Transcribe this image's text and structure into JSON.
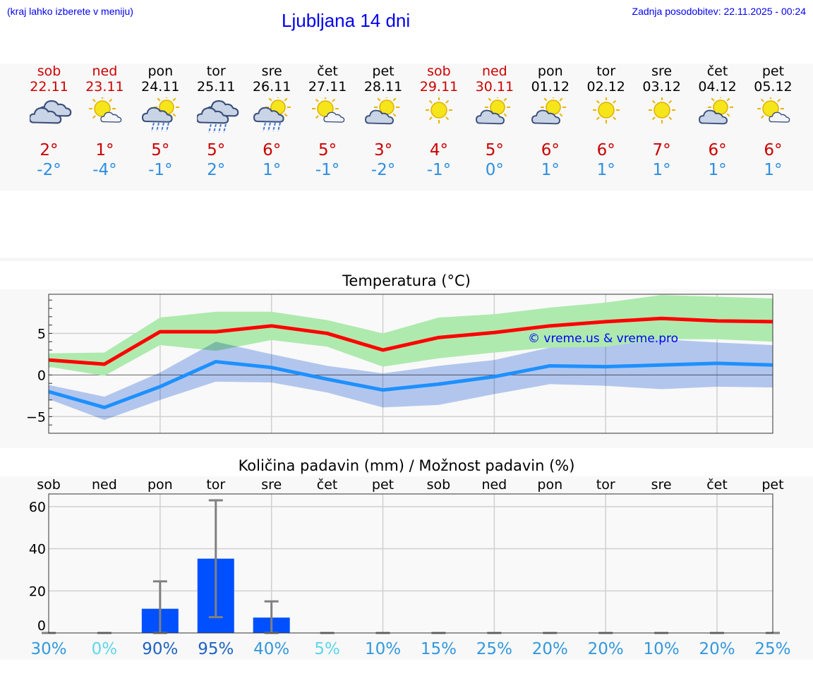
{
  "header": {
    "hint": "(kraj lahko izberete v meniju)",
    "title": "Ljubljana 14 dni",
    "updated": "Zadnja posodobitev: 22.11.2025 - 00:24"
  },
  "days": [
    {
      "name": "sob",
      "date": "22.11",
      "weekend": true,
      "icon": "cloudy",
      "max": "2°",
      "min": "-2°",
      "precip_pct": "30%"
    },
    {
      "name": "ned",
      "date": "23.11",
      "weekend": true,
      "icon": "sun-small-cloud",
      "max": "1°",
      "min": "-4°",
      "precip_pct": "0%"
    },
    {
      "name": "pon",
      "date": "24.11",
      "weekend": false,
      "icon": "sun-cloud-rain",
      "max": "5°",
      "min": "-1°",
      "precip_pct": "90%"
    },
    {
      "name": "tor",
      "date": "25.11",
      "weekend": false,
      "icon": "cloud-rain",
      "max": "5°",
      "min": "2°",
      "precip_pct": "95%"
    },
    {
      "name": "sre",
      "date": "26.11",
      "weekend": false,
      "icon": "sun-cloud-rain",
      "max": "6°",
      "min": "1°",
      "precip_pct": "40%"
    },
    {
      "name": "čet",
      "date": "27.11",
      "weekend": false,
      "icon": "sun-small-cloud",
      "max": "5°",
      "min": "-1°",
      "precip_pct": "5%"
    },
    {
      "name": "pet",
      "date": "28.11",
      "weekend": false,
      "icon": "cloud-sun",
      "max": "3°",
      "min": "-2°",
      "precip_pct": "10%"
    },
    {
      "name": "sob",
      "date": "29.11",
      "weekend": true,
      "icon": "sun",
      "max": "4°",
      "min": "-1°",
      "precip_pct": "15%"
    },
    {
      "name": "ned",
      "date": "30.11",
      "weekend": true,
      "icon": "cloud-sun",
      "max": "5°",
      "min": "0°",
      "precip_pct": "25%"
    },
    {
      "name": "pon",
      "date": "01.12",
      "weekend": false,
      "icon": "cloud-sun",
      "max": "6°",
      "min": "1°",
      "precip_pct": "20%"
    },
    {
      "name": "tor",
      "date": "02.12",
      "weekend": false,
      "icon": "sun",
      "max": "6°",
      "min": "1°",
      "precip_pct": "20%"
    },
    {
      "name": "sre",
      "date": "03.12",
      "weekend": false,
      "icon": "sun",
      "max": "7°",
      "min": "1°",
      "precip_pct": "10%"
    },
    {
      "name": "čet",
      "date": "04.12",
      "weekend": false,
      "icon": "cloud-sun",
      "max": "6°",
      "min": "1°",
      "precip_pct": "20%"
    },
    {
      "name": "pet",
      "date": "05.12",
      "weekend": false,
      "icon": "sun-small-cloud",
      "max": "6°",
      "min": "1°",
      "precip_pct": "25%"
    }
  ],
  "colors": {
    "weekend": "#cc0000",
    "weekday": "#000000",
    "max_line": "#ff0000",
    "min_line": "#1e90ff",
    "max_band": "#aeeaae",
    "min_band": "#aec6f2",
    "bar": "#0050ff",
    "error": "#808080",
    "watermark": "#0000ff"
  },
  "chart_data": [
    {
      "type": "line",
      "title": "Temperatura (°C)",
      "watermark": "© vreme.us & vreme.pro",
      "ylim": [
        -7,
        9.7
      ],
      "yticks": [
        "5",
        "0",
        "−5"
      ],
      "ytick_values": [
        5,
        0,
        -5
      ],
      "grid": true,
      "series": [
        {
          "values": [
            1.8,
            1.3,
            5.2,
            5.2,
            5.9,
            5.0,
            3.0,
            4.5,
            5.1,
            5.9,
            6.4,
            6.8,
            6.5,
            6.4
          ],
          "band_high": [
            2.6,
            2.7,
            6.9,
            7.6,
            7.6,
            6.6,
            5.0,
            6.9,
            7.3,
            8.1,
            8.7,
            9.6,
            9.4,
            9.2
          ],
          "band_low": [
            1.0,
            -0.1,
            3.6,
            2.9,
            4.2,
            3.4,
            1.0,
            2.0,
            2.7,
            3.3,
            3.4,
            4.3,
            4.3,
            4.0
          ]
        },
        {
          "values": [
            -2.0,
            -3.9,
            -1.4,
            1.6,
            0.9,
            -0.5,
            -1.8,
            -1.1,
            -0.2,
            1.1,
            1.0,
            1.2,
            1.4,
            1.2
          ],
          "band_high": [
            -1.2,
            -2.6,
            0.3,
            4.0,
            2.5,
            1.1,
            0.2,
            1.1,
            1.8,
            3.3,
            3.4,
            4.3,
            3.9,
            3.6
          ],
          "band_low": [
            -2.9,
            -5.4,
            -3.0,
            -0.8,
            -0.9,
            -2.1,
            -3.9,
            -3.6,
            -2.3,
            -1.1,
            -1.3,
            -1.7,
            -1.4,
            -1.5
          ]
        }
      ]
    },
    {
      "type": "bar",
      "title": "Količina padavin (mm) / Možnost padavin (%)",
      "categories": [
        "sob",
        "ned",
        "pon",
        "tor",
        "sre",
        "čet",
        "pet",
        "sob",
        "ned",
        "pon",
        "tor",
        "sre",
        "čet",
        "pet"
      ],
      "values": [
        0,
        0,
        11.5,
        35.3,
        7.3,
        0,
        0,
        0,
        0,
        0,
        0,
        0,
        0,
        0
      ],
      "error_high": [
        0,
        0,
        24.5,
        63,
        15,
        0,
        0,
        0,
        0,
        0,
        0,
        0,
        0,
        0
      ],
      "error_low": [
        0,
        0,
        0,
        7.5,
        0,
        0,
        0,
        0,
        0,
        0,
        0,
        0,
        0,
        0
      ],
      "ylim": [
        -4,
        66
      ],
      "yticks": [
        "60",
        "40",
        "20",
        "0"
      ],
      "ytick_values": [
        60,
        40,
        20,
        0
      ],
      "grid": true
    }
  ]
}
